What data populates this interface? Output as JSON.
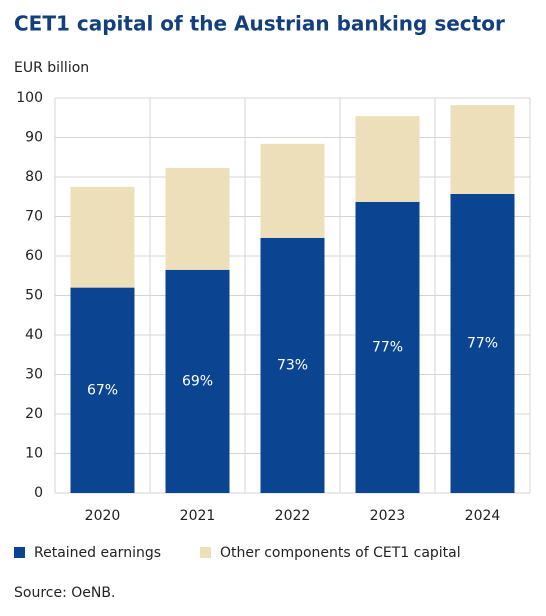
{
  "chart_data": {
    "type": "stacked_bar",
    "title": "CET1 capital of the Austrian banking sector",
    "y_axis_label": "EUR billion",
    "categories": [
      "2020",
      "2021",
      "2022",
      "2023",
      "2024"
    ],
    "series": [
      {
        "name": "Retained earnings",
        "color": "#0b4592",
        "values": [
          52,
          56.5,
          64.6,
          73.7,
          75.7
        ]
      },
      {
        "name": "Other components of CET1 capital",
        "color": "#eddfba",
        "values": [
          25.5,
          25.8,
          23.8,
          21.7,
          22.5
        ]
      }
    ],
    "share_labels": [
      "67%",
      "69%",
      "73%",
      "77%",
      "77%"
    ],
    "ylim": [
      0,
      100
    ],
    "yticks": [
      0,
      10,
      20,
      30,
      40,
      50,
      60,
      70,
      80,
      90,
      100
    ],
    "grid": true,
    "source": "Source: OeNB."
  }
}
